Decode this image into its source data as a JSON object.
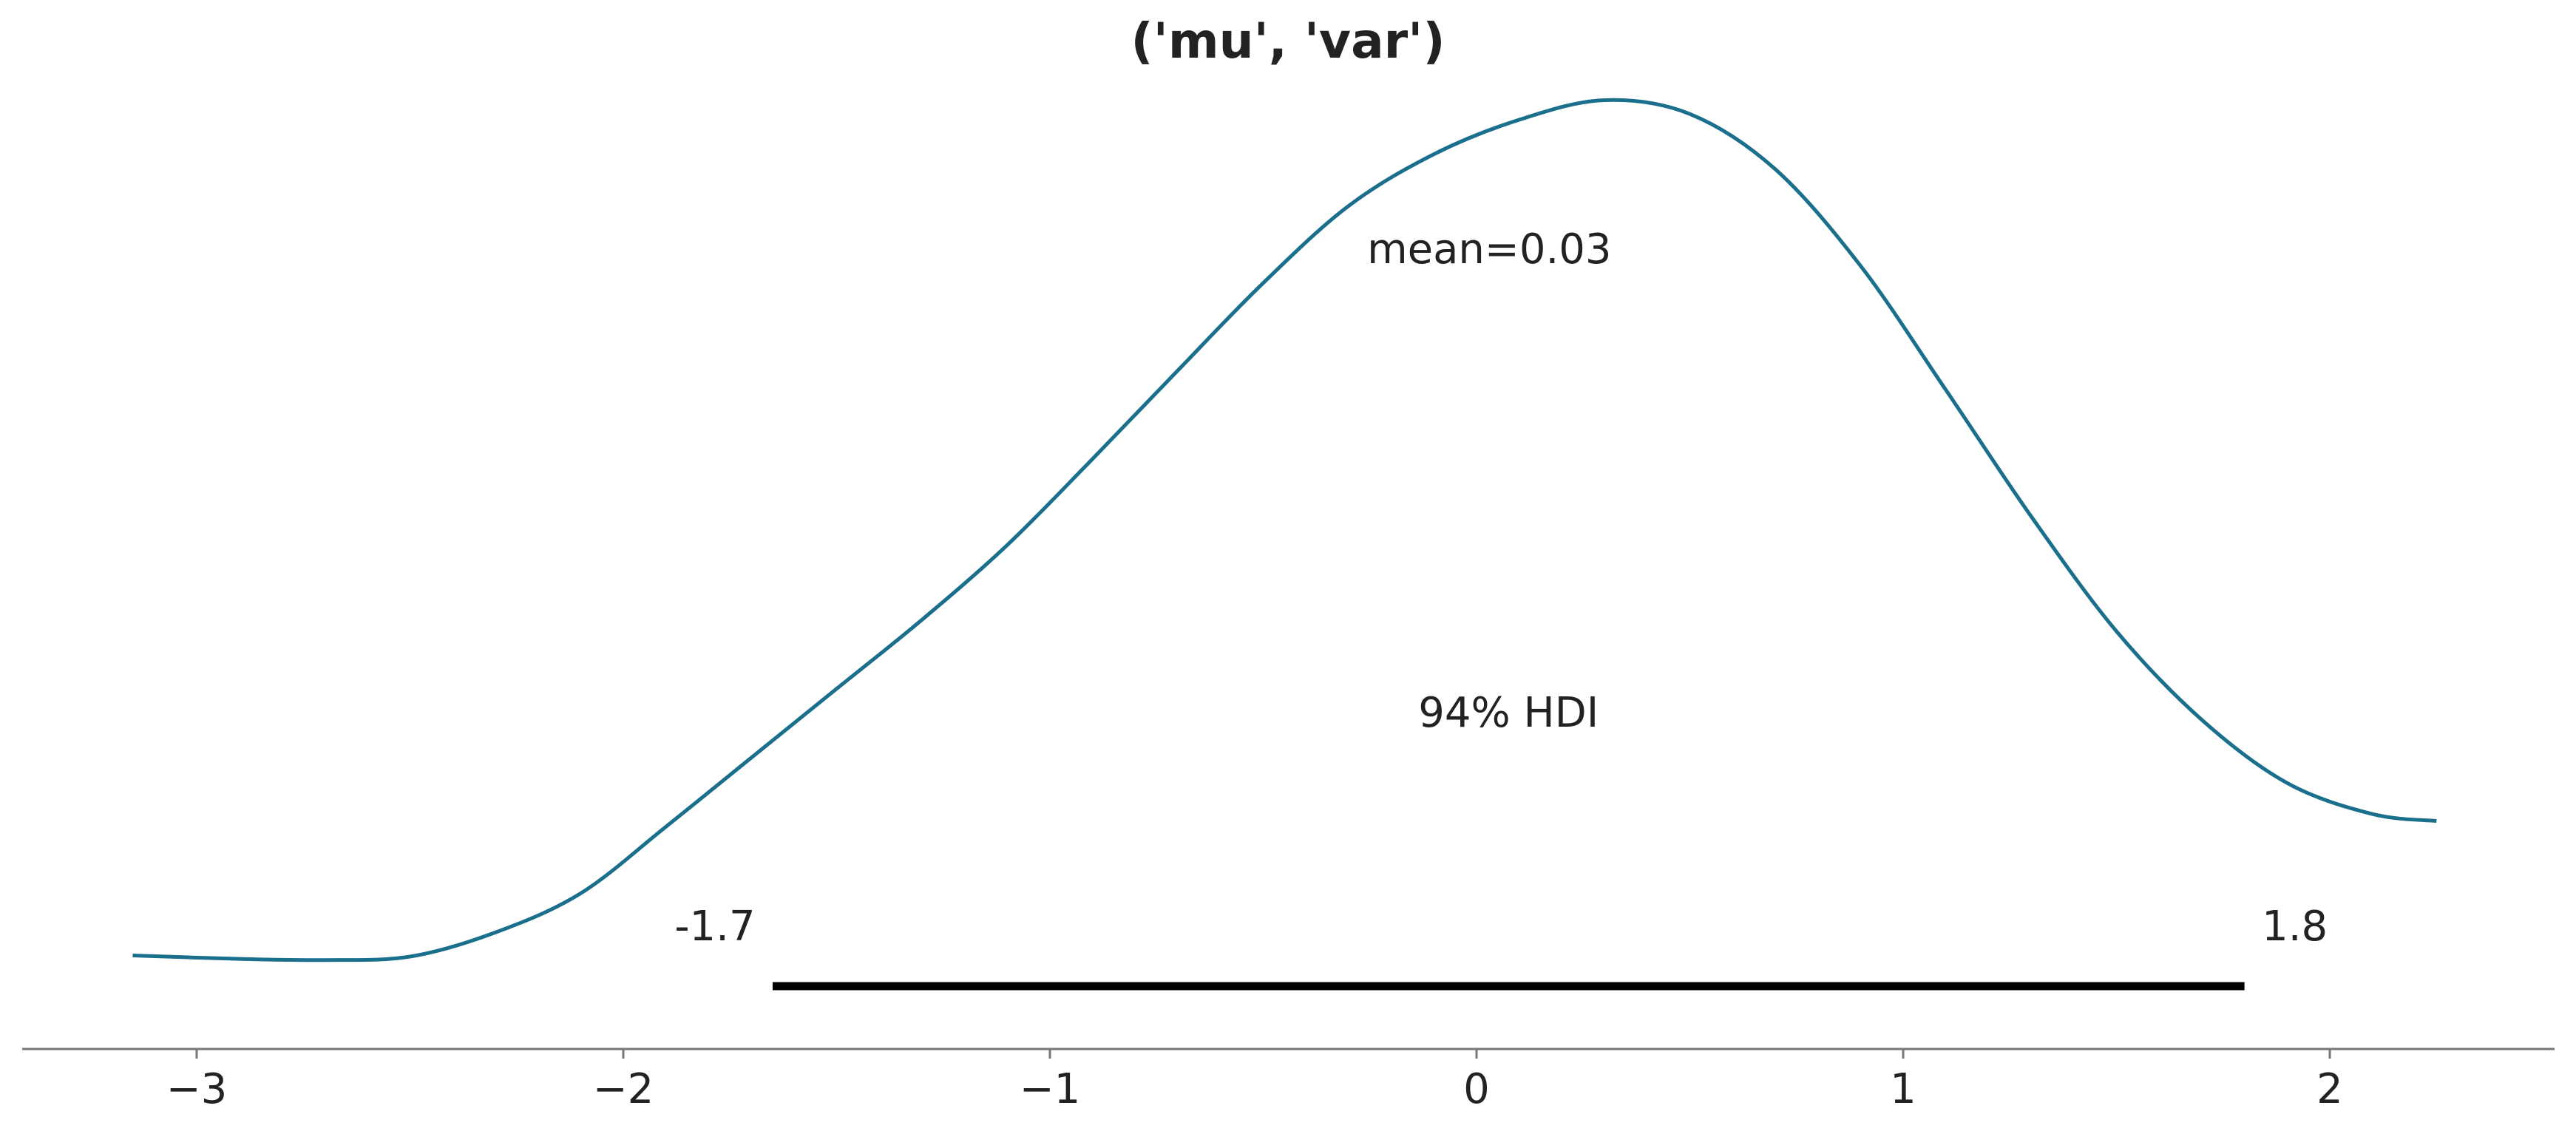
{
  "chart_data": {
    "type": "area",
    "title": "('mu', 'var')",
    "xlabel": "",
    "ylabel": "",
    "xlim": [
      -3.42,
      2.52
    ],
    "ylim": [
      0,
      1
    ],
    "grid": false,
    "y_axis_visible": false,
    "x_ticks": [
      -3,
      -2,
      -1,
      0,
      1,
      2
    ],
    "x_tick_labels": [
      "−3",
      "−2",
      "−1",
      "0",
      "1",
      "2"
    ],
    "series": [
      {
        "color": "#1a6f8c",
        "x": [
          -3.15,
          -2.9,
          -2.7,
          -2.5,
          -2.3,
          -2.1,
          -1.9,
          -1.7,
          -1.5,
          -1.3,
          -1.1,
          -0.9,
          -0.7,
          -0.5,
          -0.3,
          -0.1,
          0.1,
          0.3,
          0.5,
          0.7,
          0.9,
          1.1,
          1.3,
          1.5,
          1.7,
          1.9,
          2.1,
          2.25
        ],
        "y": [
          0.028,
          0.025,
          0.024,
          0.027,
          0.048,
          0.082,
          0.14,
          0.2,
          0.26,
          0.32,
          0.385,
          0.46,
          0.537,
          0.613,
          0.68,
          0.725,
          0.755,
          0.772,
          0.76,
          0.712,
          0.628,
          0.52,
          0.41,
          0.31,
          0.233,
          0.178,
          0.151,
          0.145
        ]
      }
    ],
    "point_estimate": {
      "label": "mean=0.03",
      "value": 0.03
    },
    "hdi": {
      "label": "94% HDI",
      "lower": -1.65,
      "upper": 1.8,
      "lower_label": "-1.7",
      "upper_label": "1.8",
      "color": "#000000"
    }
  }
}
